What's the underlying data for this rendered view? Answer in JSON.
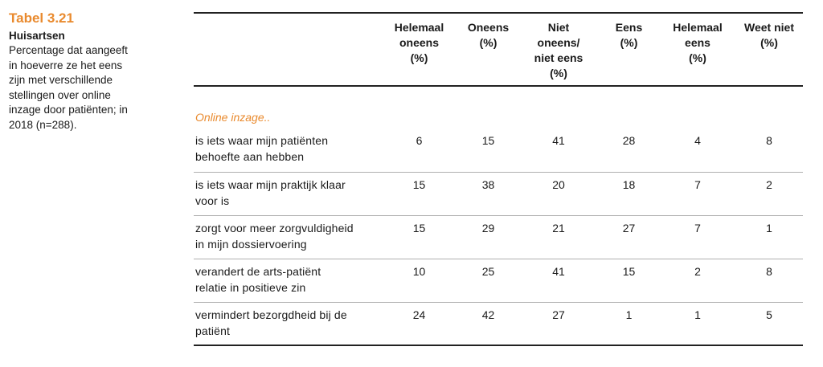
{
  "sidebar": {
    "table_label": "Tabel 3.21",
    "subtitle": "Huisartsen",
    "caption_lines": [
      "Percentage dat aangeeft",
      "in hoeverre ze het eens",
      "zijn met verschillende",
      "stellingen over online",
      "inzage door patiënten; in",
      "2018 (n=288)."
    ]
  },
  "table": {
    "columns": [
      [
        "Helemaal",
        "oneens",
        "(%)"
      ],
      [
        "Oneens",
        "(%)"
      ],
      [
        "Niet",
        "oneens/",
        "niet eens",
        "(%)"
      ],
      [
        "Eens",
        "(%)"
      ],
      [
        "Helemaal",
        "eens",
        "(%)"
      ],
      [
        "Weet niet",
        "(%)"
      ]
    ],
    "section_label": "Online inzage..",
    "rows": [
      {
        "statement": [
          "is iets waar mijn patiënten",
          "behoefte aan hebben"
        ],
        "values": [
          "6",
          "15",
          "41",
          "28",
          "4",
          "8"
        ]
      },
      {
        "statement": [
          "is iets waar mijn praktijk klaar",
          "voor is"
        ],
        "values": [
          "15",
          "38",
          "20",
          "18",
          "7",
          "2"
        ]
      },
      {
        "statement": [
          "zorgt voor meer zorgvuldigheid",
          "in mijn dossiervoering"
        ],
        "values": [
          "15",
          "29",
          "21",
          "27",
          "7",
          "1"
        ]
      },
      {
        "statement": [
          "verandert de arts-patiënt",
          "relatie in positieve zin"
        ],
        "values": [
          "10",
          "25",
          "41",
          "15",
          "2",
          "8"
        ]
      },
      {
        "statement": [
          "vermindert bezorgdheid bij de",
          "patiënt"
        ],
        "values": [
          "24",
          "42",
          "27",
          "1",
          "1",
          "5"
        ]
      }
    ]
  },
  "colors": {
    "accent": "#e98a2e",
    "text": "#1a1a1a",
    "rule": "#222222",
    "row_divider": "#b0b0b0"
  }
}
